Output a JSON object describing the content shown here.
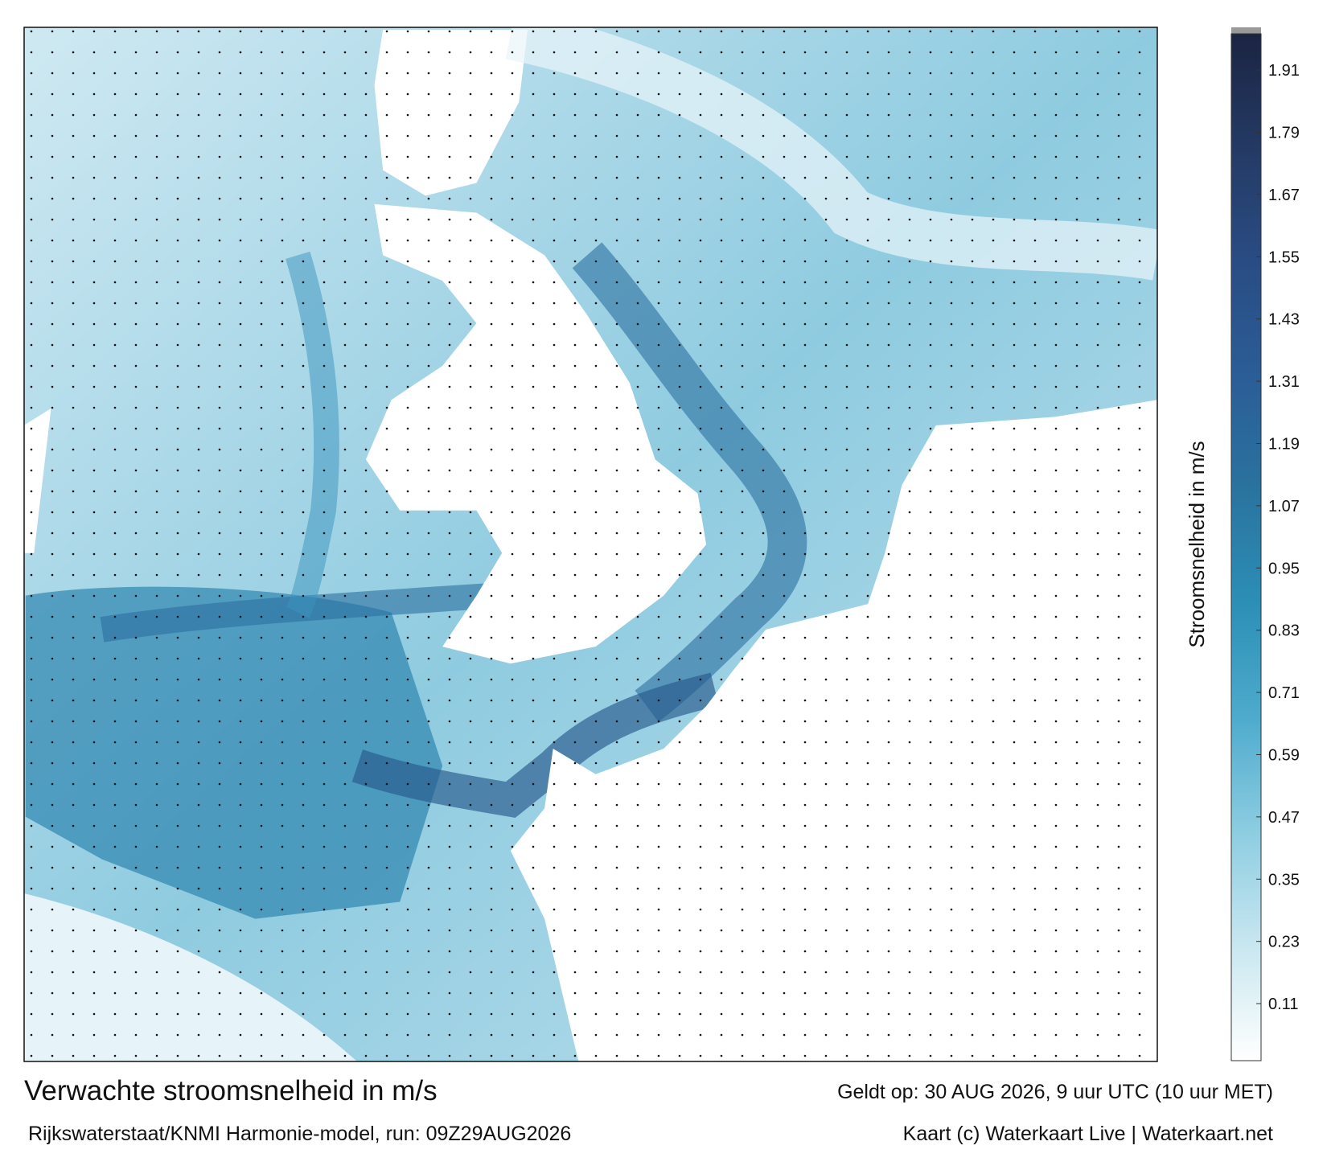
{
  "chart_data": {
    "type": "colorbar-map",
    "title": "Verwachte stroomsnelheid in m/s",
    "subtitle": "Rijkswaterstaat/KNMI Harmonie-model, run: 09Z29AUG2026",
    "valid_time": "Geldt op: 30 AUG 2026, 9 uur UTC (10 uur MET)",
    "credit": "Kaart (c) Waterkaart Live | Waterkaart.net",
    "colorbar_label": "Stroomsnelheid in m/s",
    "clim": [
      0,
      1.98
    ],
    "cticks": [
      0.11,
      0.23,
      0.35,
      0.47,
      0.59,
      0.71,
      0.83,
      0.95,
      1.07,
      1.19,
      1.31,
      1.43,
      1.55,
      1.67,
      1.79,
      1.91
    ],
    "colorscale": [
      "#ffffff",
      "#c9e7f0",
      "#8dcde1",
      "#4eabcd",
      "#2c8fb6",
      "#2a739f",
      "#2b5d96",
      "#2a4c84",
      "#243a64",
      "#1b2442"
    ]
  }
}
